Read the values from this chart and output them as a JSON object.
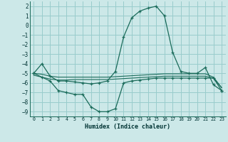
{
  "xlabel": "Humidex (Indice chaleur)",
  "x": [
    0,
    1,
    2,
    3,
    4,
    5,
    6,
    7,
    8,
    9,
    10,
    11,
    12,
    13,
    14,
    15,
    16,
    17,
    18,
    19,
    20,
    21,
    22,
    23
  ],
  "y_main": [
    -5.0,
    -4.0,
    -5.3,
    -5.8,
    -5.8,
    -5.9,
    -6.0,
    -6.1,
    -6.0,
    -5.8,
    -4.8,
    -1.2,
    0.8,
    1.5,
    1.8,
    2.0,
    1.0,
    -2.8,
    -4.8,
    -5.0,
    -5.0,
    -4.4,
    -6.2,
    -6.8
  ],
  "y_low": [
    -5.0,
    -5.4,
    -5.8,
    -6.8,
    -7.0,
    -7.2,
    -7.2,
    -8.5,
    -9.0,
    -9.0,
    -8.7,
    -6.0,
    -5.8,
    -5.7,
    -5.6,
    -5.5,
    -5.5,
    -5.5,
    -5.5,
    -5.5,
    -5.5,
    -5.5,
    -5.5,
    -6.8
  ],
  "y_flat": [
    -5.2,
    -5.4,
    -5.6,
    -5.7,
    -5.7,
    -5.65,
    -5.65,
    -5.65,
    -5.65,
    -5.65,
    -5.6,
    -5.55,
    -5.5,
    -5.45,
    -5.4,
    -5.35,
    -5.3,
    -5.3,
    -5.3,
    -5.3,
    -5.3,
    -5.3,
    -5.5,
    -6.5
  ],
  "y_trend": [
    -5.0,
    -5.1,
    -5.3,
    -5.4,
    -5.4,
    -5.4,
    -5.4,
    -5.4,
    -5.4,
    -5.4,
    -5.35,
    -5.3,
    -5.25,
    -5.2,
    -5.15,
    -5.1,
    -5.05,
    -5.05,
    -5.05,
    -5.05,
    -5.05,
    -5.05,
    -5.4,
    -6.5
  ],
  "line_color": "#1a6b5a",
  "bg_color": "#cce8e8",
  "grid_color": "#99cccc",
  "ylim": [
    -9.5,
    2.5
  ],
  "xlim": [
    -0.5,
    23.5
  ],
  "yticks": [
    2,
    1,
    0,
    -1,
    -2,
    -3,
    -4,
    -5,
    -6,
    -7,
    -8,
    -9
  ],
  "xticks": [
    0,
    1,
    2,
    3,
    4,
    5,
    6,
    7,
    8,
    9,
    10,
    11,
    12,
    13,
    14,
    15,
    16,
    17,
    18,
    19,
    20,
    21,
    22,
    23
  ]
}
